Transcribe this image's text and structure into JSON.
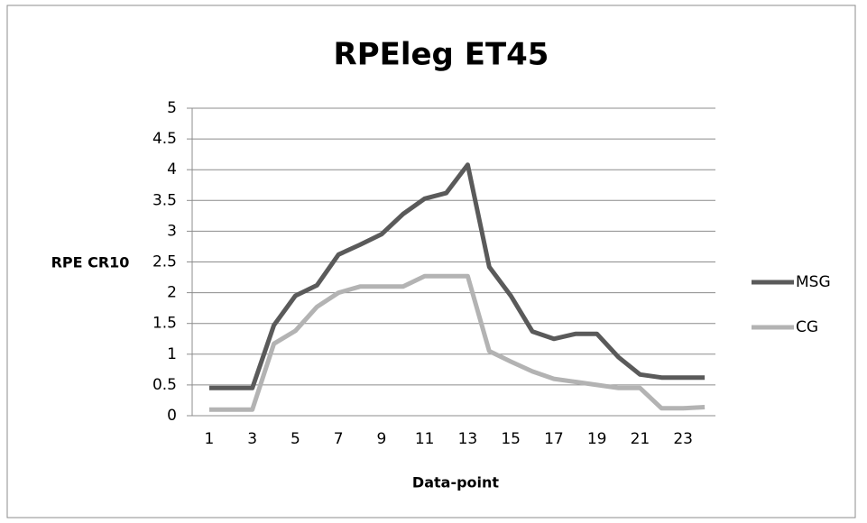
{
  "chart_data": {
    "type": "line",
    "title": "RPEleg ET45",
    "x_label": "Data-point",
    "y_label": "RPE CR10",
    "categories": [
      "1",
      null,
      "3",
      null,
      "5",
      null,
      "7",
      null,
      "9",
      null,
      "11",
      null,
      "13",
      null,
      "15",
      null,
      "17",
      null,
      "19",
      null,
      "21",
      null,
      "23",
      null
    ],
    "series": [
      {
        "name": "MSG",
        "color": "#5a5a5a",
        "values": [
          0.45,
          0.45,
          0.45,
          1.47,
          1.95,
          2.12,
          2.62,
          2.78,
          2.95,
          3.28,
          3.53,
          3.62,
          4.08,
          2.42,
          1.95,
          1.37,
          1.25,
          1.33,
          1.33,
          0.95,
          0.67,
          0.62,
          0.62,
          0.62
        ]
      },
      {
        "name": "CG",
        "color": "#b3b3b3",
        "values": [
          0.1,
          0.1,
          0.1,
          1.17,
          1.38,
          1.77,
          2.0,
          2.1,
          2.1,
          2.1,
          2.27,
          2.27,
          2.27,
          1.05,
          0.88,
          0.72,
          0.6,
          0.55,
          0.5,
          0.45,
          0.45,
          0.12,
          0.12,
          0.14
        ]
      }
    ],
    "ylim": [
      0,
      5
    ],
    "yticks": [
      0,
      0.5,
      1,
      1.5,
      2,
      2.5,
      3,
      3.5,
      4,
      4.5,
      5
    ],
    "grid": true,
    "legend": "right"
  }
}
